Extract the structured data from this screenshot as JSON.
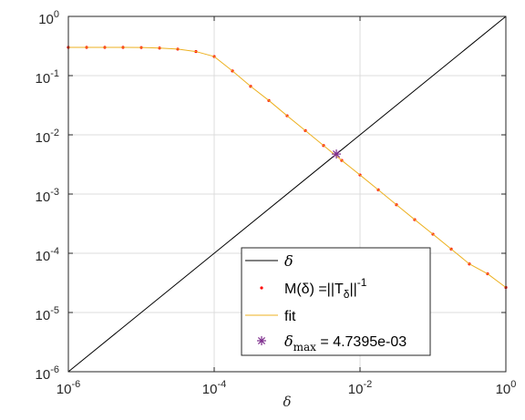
{
  "chart_data": {
    "type": "line",
    "x_scale": "log",
    "y_scale": "log",
    "xlim": [
      1e-06,
      1
    ],
    "ylim": [
      1e-06,
      1
    ],
    "grid": true,
    "xlabel": "δ",
    "ylabel": "",
    "x_ticks": [
      {
        "base": "10",
        "exp": "-6",
        "value": 1e-06
      },
      {
        "base": "10",
        "exp": "-4",
        "value": 0.0001
      },
      {
        "base": "10",
        "exp": "-2",
        "value": 0.01
      },
      {
        "base": "10",
        "exp": "0",
        "value": 1
      }
    ],
    "y_ticks": [
      {
        "base": "10",
        "exp": "-6",
        "value": 1e-06
      },
      {
        "base": "10",
        "exp": "-5",
        "value": 1e-05
      },
      {
        "base": "10",
        "exp": "-4",
        "value": 0.0001
      },
      {
        "base": "10",
        "exp": "-3",
        "value": 0.001
      },
      {
        "base": "10",
        "exp": "-2",
        "value": 0.01
      },
      {
        "base": "10",
        "exp": "-1",
        "value": 0.1
      },
      {
        "base": "10",
        "exp": "0",
        "value": 1
      }
    ],
    "series": [
      {
        "name": "δ",
        "style": "line",
        "color": "#000000",
        "x": [
          1e-06,
          1
        ],
        "y": [
          1e-06,
          1
        ]
      },
      {
        "name": "M(δ) =||T_δ||^-1",
        "style": "points",
        "color": "#ff0000",
        "x": [
          1e-06,
          1.78e-06,
          3.16e-06,
          5.62e-06,
          1e-05,
          1.78e-05,
          3.16e-05,
          5.62e-05,
          0.0001,
          0.000178,
          0.000316,
          0.000562,
          0.001,
          0.00178,
          0.00316,
          0.00562,
          0.01,
          0.0178,
          0.0316,
          0.0562,
          0.1,
          0.178,
          0.316,
          0.562,
          1
        ],
        "y": [
          0.3,
          0.3,
          0.3,
          0.3,
          0.298,
          0.292,
          0.28,
          0.255,
          0.21,
          0.12,
          0.066,
          0.038,
          0.021,
          0.0118,
          0.0066,
          0.0037,
          0.0021,
          0.00118,
          0.00066,
          0.00037,
          0.00021,
          0.000118,
          6.6e-05,
          4.5e-05,
          2.65e-05
        ]
      },
      {
        "name": "fit",
        "style": "line",
        "color": "#edb120",
        "x": [
          1e-06,
          1.78e-06,
          3.16e-06,
          5.62e-06,
          1e-05,
          1.78e-05,
          3.16e-05,
          5.62e-05,
          0.0001,
          0.000178,
          0.000316,
          0.000562,
          0.001,
          0.00178,
          0.00316,
          0.00562,
          0.01,
          0.0178,
          0.0316,
          0.0562,
          0.1,
          0.178,
          0.316,
          0.562,
          1
        ],
        "y": [
          0.3,
          0.3,
          0.3,
          0.3,
          0.298,
          0.292,
          0.28,
          0.255,
          0.21,
          0.12,
          0.066,
          0.038,
          0.021,
          0.0118,
          0.0066,
          0.0037,
          0.0021,
          0.00118,
          0.00066,
          0.00037,
          0.00021,
          0.000118,
          6.6e-05,
          4.5e-05,
          2.65e-05
        ]
      },
      {
        "name": "δ_max = 4.7395e-03",
        "style": "marker",
        "marker": "*",
        "color": "#7e2f8e",
        "x": [
          0.0047395
        ],
        "y": [
          0.0047395
        ]
      }
    ],
    "legend": {
      "placement": "bottom-right",
      "entries": [
        {
          "symbol": "line",
          "color": "#000000",
          "label": "δ"
        },
        {
          "symbol": "dot",
          "color": "#ff0000",
          "label_main": "M(δ) =||T",
          "label_sub": "δ",
          "label_tail": "||",
          "label_sup": "-1"
        },
        {
          "symbol": "line",
          "color": "#edb120",
          "label": "fit"
        },
        {
          "symbol": "star",
          "color": "#7e2f8e",
          "label_main": "δ",
          "label_sub": "max",
          "label_tail": " = 4.7395e-03"
        }
      ]
    }
  }
}
